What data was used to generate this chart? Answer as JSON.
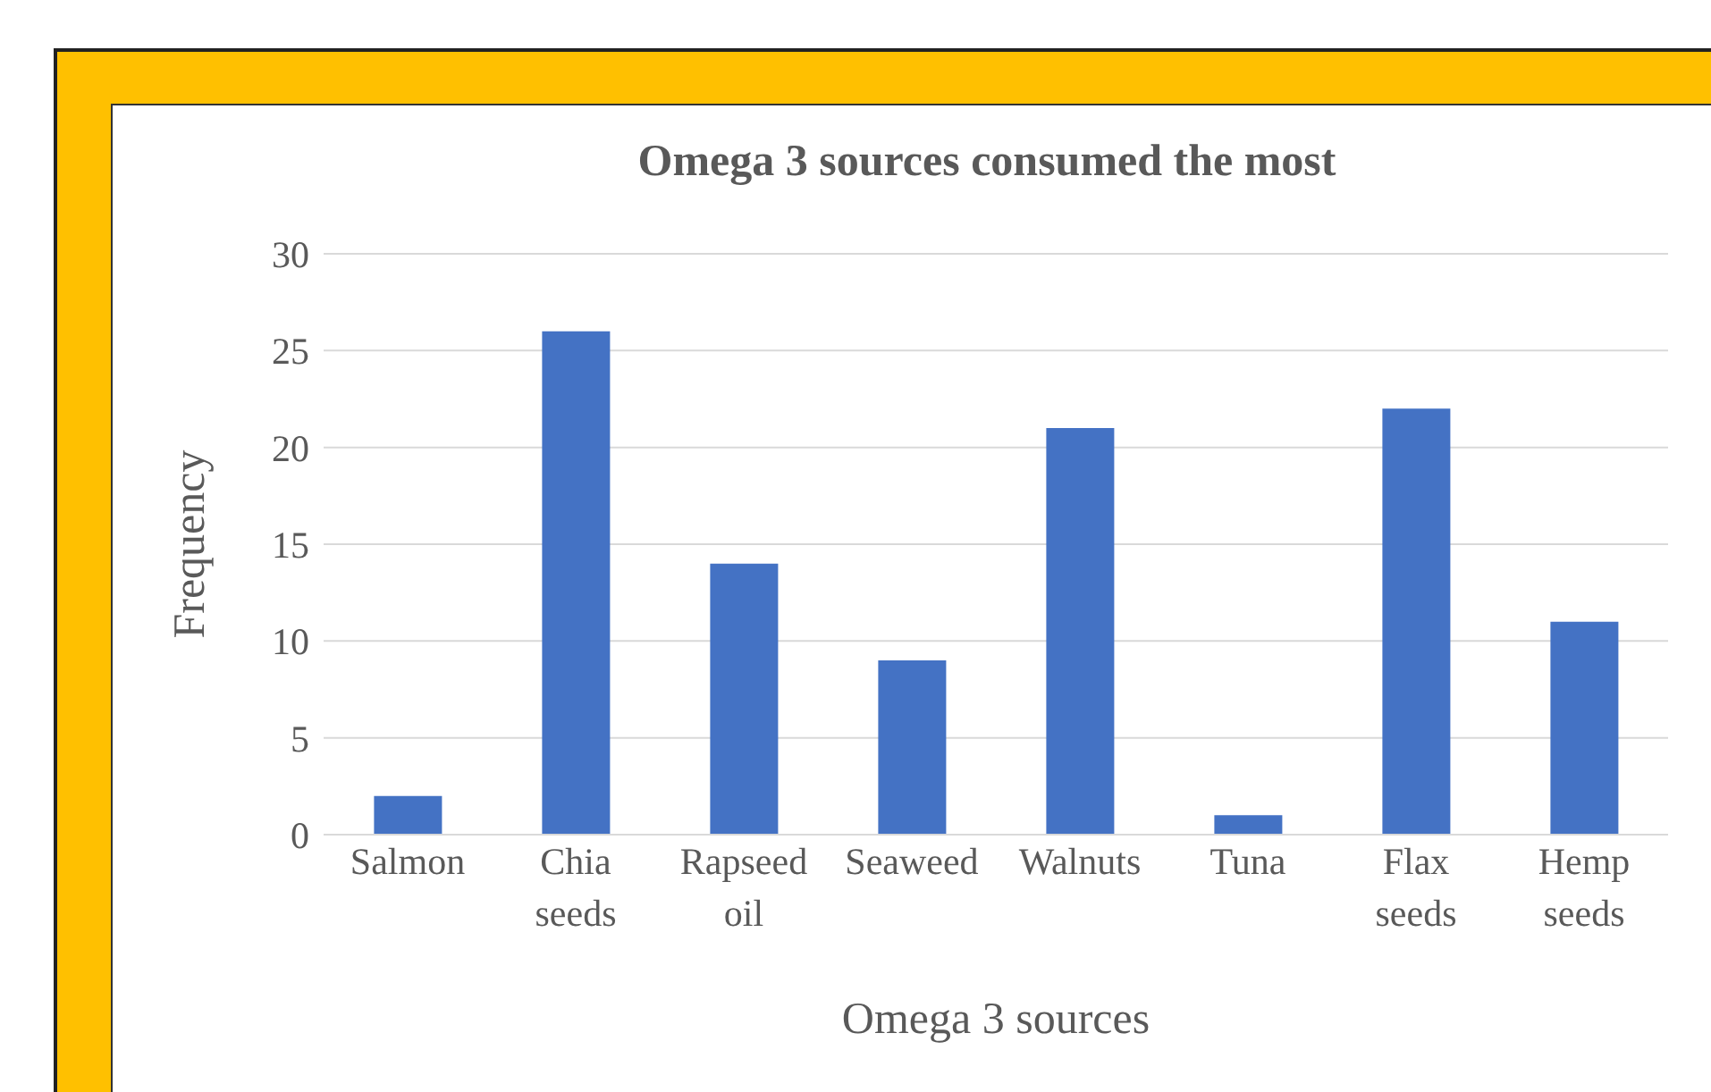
{
  "chart_data": {
    "type": "bar",
    "title": "Omega 3 sources consumed the most",
    "xlabel": "Omega 3 sources",
    "ylabel": "Frequency",
    "categories": [
      "Salmon",
      "Chia seeds",
      "Rapseed oil",
      "Seaweed",
      "Walnuts",
      "Tuna",
      "Flax seeds",
      "Hemp seeds"
    ],
    "values": [
      2,
      26,
      14,
      9,
      21,
      1,
      22,
      11
    ],
    "color": "#4472c4",
    "ylim": [
      0,
      30
    ],
    "yticks": [
      0,
      5,
      10,
      15,
      20,
      25,
      30
    ],
    "grid": "y",
    "legend": false
  }
}
